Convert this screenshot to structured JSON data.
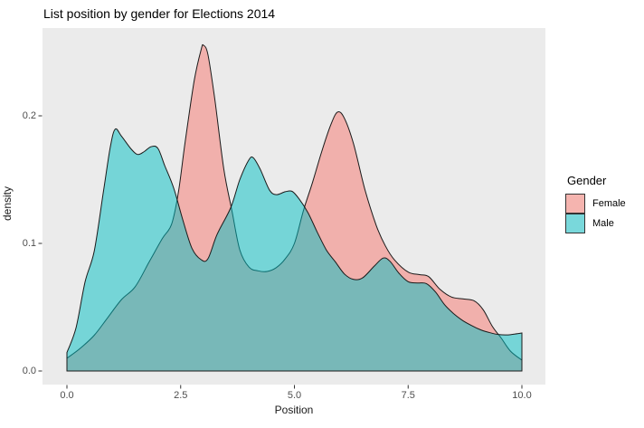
{
  "title": "List position by gender for Elections 2014",
  "axes": {
    "x": {
      "label": "Position",
      "tick_values": [
        0,
        2.5,
        5,
        7.5,
        10
      ],
      "tick_labels": [
        "0.0",
        "2.5",
        "5.0",
        "7.5",
        "10.0"
      ]
    },
    "y": {
      "label": "density",
      "tick_values": [
        0,
        0.1,
        0.2
      ],
      "tick_labels": [
        "0.0",
        "0.1",
        "0.2"
      ]
    }
  },
  "legend": {
    "title": "Gender",
    "items": [
      {
        "label": "Female",
        "color": "#F8766D",
        "swatch_color": "#F5B4AF"
      },
      {
        "label": "Male",
        "color": "#00BFC4",
        "swatch_color": "#79D8DB"
      }
    ]
  },
  "colors": {
    "panel_background": "#EBEBEB",
    "outline": "#1A1A1A",
    "tick_mark": "#333333",
    "tick_text": "#4D4D4D",
    "female_fill": "#F8766D",
    "male_fill": "#00BFC4",
    "fill_alpha": 0.5
  },
  "chart_data": {
    "type": "area",
    "subtype": "overlapping-density",
    "title": "List position by gender for Elections 2014",
    "xlabel": "Position",
    "ylabel": "density",
    "xlim": [
      0,
      10
    ],
    "ylim": [
      0,
      0.269
    ],
    "grid": false,
    "legend_position": "right",
    "series": [
      {
        "name": "Female",
        "color": "#F8766D",
        "x": [
          0,
          0.3,
          0.6,
          0.9,
          1.2,
          1.5,
          1.8,
          2.1,
          2.3,
          2.45,
          2.6,
          2.8,
          2.95,
          3.0,
          3.1,
          3.25,
          3.45,
          3.63,
          3.8,
          4.0,
          4.2,
          4.4,
          4.6,
          4.8,
          5.0,
          5.2,
          5.4,
          5.6,
          5.8,
          5.95,
          6.1,
          6.3,
          6.55,
          6.8,
          7.0,
          7.2,
          7.5,
          7.75,
          7.95,
          8.2,
          8.45,
          8.7,
          8.95,
          9.15,
          9.35,
          9.55,
          9.75,
          10.0
        ],
        "density": [
          0.01,
          0.018,
          0.028,
          0.042,
          0.056,
          0.066,
          0.085,
          0.104,
          0.115,
          0.14,
          0.18,
          0.228,
          0.252,
          0.2553,
          0.248,
          0.213,
          0.158,
          0.125,
          0.095,
          0.0815,
          0.0785,
          0.078,
          0.081,
          0.088,
          0.1,
          0.126,
          0.148,
          0.172,
          0.193,
          0.203,
          0.198,
          0.178,
          0.142,
          0.114,
          0.098,
          0.087,
          0.0775,
          0.0755,
          0.074,
          0.064,
          0.058,
          0.0565,
          0.055,
          0.048,
          0.035,
          0.0255,
          0.0155,
          0.0085
        ]
      },
      {
        "name": "Male",
        "color": "#00BFC4",
        "x": [
          0,
          0.2,
          0.4,
          0.6,
          0.8,
          0.95,
          1.06,
          1.2,
          1.4,
          1.55,
          1.7,
          1.85,
          2.0,
          2.15,
          2.35,
          2.55,
          2.75,
          2.95,
          3.1,
          3.3,
          3.6,
          3.8,
          4.0,
          4.1,
          4.25,
          4.45,
          4.6,
          4.8,
          4.95,
          5.1,
          5.3,
          5.5,
          5.7,
          5.9,
          6.1,
          6.3,
          6.5,
          6.75,
          6.95,
          7.1,
          7.3,
          7.5,
          7.7,
          7.9,
          8.1,
          8.3,
          8.5,
          8.7,
          8.9,
          9.1,
          9.3,
          9.5,
          9.7,
          9.85,
          10.0
        ],
        "density": [
          0.0145,
          0.034,
          0.07,
          0.094,
          0.14,
          0.175,
          0.1895,
          0.184,
          0.1745,
          0.1697,
          0.172,
          0.1758,
          0.1745,
          0.161,
          0.143,
          0.118,
          0.096,
          0.0872,
          0.088,
          0.107,
          0.128,
          0.15,
          0.1655,
          0.167,
          0.158,
          0.142,
          0.1382,
          0.1405,
          0.1408,
          0.135,
          0.124,
          0.109,
          0.095,
          0.0855,
          0.076,
          0.0718,
          0.073,
          0.082,
          0.0885,
          0.086,
          0.0765,
          0.07,
          0.069,
          0.0685,
          0.062,
          0.052,
          0.045,
          0.0395,
          0.0355,
          0.0322,
          0.03,
          0.0285,
          0.0283,
          0.029,
          0.0298
        ]
      }
    ]
  }
}
